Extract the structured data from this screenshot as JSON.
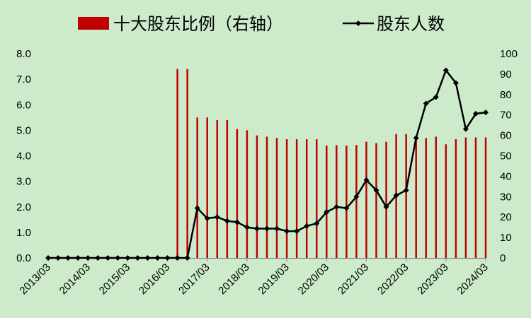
{
  "chart_data": {
    "type": "bar+line",
    "title": "",
    "legend": {
      "placement": "top",
      "items": [
        {
          "name": "十大股东比例（右轴）",
          "kind": "bar",
          "color": "#C00000"
        },
        {
          "name": "股东人数",
          "kind": "line",
          "color": "#000000"
        }
      ]
    },
    "x_tick_labels": [
      "2013/03",
      "2014/03",
      "2015/03",
      "2016/03",
      "2017/03",
      "2018/03",
      "2019/03",
      "2020/03",
      "2021/03",
      "2022/03",
      "2023/03",
      "2024/03"
    ],
    "left_axis": {
      "ylim": [
        0,
        8
      ],
      "ticks": [
        "0.0",
        "1.0",
        "2.0",
        "3.0",
        "4.0",
        "5.0",
        "6.0",
        "7.0",
        "8.0"
      ]
    },
    "right_axis": {
      "ylim": [
        0,
        100
      ],
      "ticks": [
        "0",
        "10",
        "20",
        "30",
        "40",
        "50",
        "60",
        "70",
        "80",
        "90",
        "100"
      ]
    },
    "period_start": "2013/03",
    "period_step_months": 3,
    "bar_series": {
      "name": "十大股东比例（右轴）",
      "color": "#C00000",
      "values": [
        0,
        0,
        0,
        0,
        0,
        0,
        0,
        0,
        0,
        0,
        0,
        0,
        0,
        7.4,
        7.4,
        5.5,
        5.5,
        5.4,
        5.4,
        5.05,
        5.0,
        4.8,
        4.75,
        4.7,
        4.65,
        4.65,
        4.65,
        4.65,
        4.4,
        4.42,
        4.4,
        4.42,
        4.55,
        4.5,
        4.55,
        4.85,
        4.85,
        4.75,
        4.7,
        4.75,
        4.45,
        4.65,
        4.72,
        4.72,
        4.72
      ]
    },
    "line_series": {
      "name": "股东人数",
      "color": "#000000",
      "values": [
        0,
        0,
        0,
        0,
        0,
        0,
        0,
        0,
        0,
        0,
        0,
        0,
        0,
        0,
        0,
        1.95,
        1.55,
        1.6,
        1.45,
        1.4,
        1.2,
        1.15,
        1.15,
        1.15,
        1.05,
        1.05,
        1.25,
        1.35,
        1.8,
        2.0,
        1.95,
        2.4,
        3.05,
        2.65,
        2.0,
        2.45,
        2.65,
        4.7,
        6.05,
        6.3,
        7.35,
        6.85,
        5.05,
        5.65,
        5.7
      ]
    }
  }
}
